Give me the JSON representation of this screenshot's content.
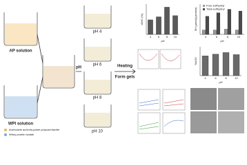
{
  "labels": {
    "ap": "AP solution",
    "wpi": "WPI solution",
    "ph": "pH",
    "heating": "Heating",
    "form": "Form gels",
    "ph4": "pH 4",
    "ph6": "pH 6",
    "ph8": "pH 8",
    "ph10": "pH 10"
  },
  "legend": {
    "polysaccharide": "Auricularia auricula-judae polysaccharide",
    "protein": "Whey protein isolate"
  },
  "charts": [
    {
      "type": "bar",
      "ylabel": "WHC (%)",
      "xlabel": "pH",
      "categories": [
        "4",
        "6",
        "8",
        "10"
      ],
      "ylim": [
        0,
        100
      ],
      "series": [
        {
          "color": "#5a5a5a",
          "values": [
            48,
            58,
            90,
            62
          ]
        }
      ]
    },
    {
      "type": "bar",
      "ylabel": "SH (μmol/g protein)",
      "xlabel": "pH",
      "categories": [
        "4",
        "6",
        "8",
        "10"
      ],
      "ylim": [
        0,
        35
      ],
      "series": [
        {
          "name": "Free sulfhydryl",
          "color": "#9a9a9a",
          "values": [
            5,
            5,
            6,
            5
          ]
        },
        {
          "name": "Total sulfhydryl",
          "color": "#4a4a4a",
          "values": [
            21,
            25,
            29,
            27
          ]
        }
      ]
    },
    {
      "type": "bar",
      "ylabel": "%ASS",
      "xlabel": "pH",
      "categories": [
        "4",
        "6",
        "8",
        "10"
      ],
      "ylim": [
        0,
        70
      ],
      "series": [
        {
          "color": "#6a6a6a",
          "values": [
            48,
            52,
            56,
            51
          ]
        }
      ]
    }
  ]
}
